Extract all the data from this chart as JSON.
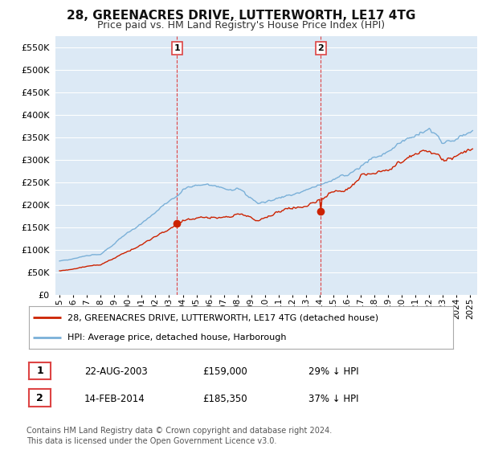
{
  "title": "28, GREENACRES DRIVE, LUTTERWORTH, LE17 4TG",
  "subtitle": "Price paid vs. HM Land Registry's House Price Index (HPI)",
  "title_fontsize": 11,
  "subtitle_fontsize": 9,
  "background_color": "#ffffff",
  "plot_bg_color": "#dce9f5",
  "grid_color": "#ffffff",
  "sale1_price": 159000,
  "sale1_hpi_pct": "29% ↓ HPI",
  "sale1_display": "22-AUG-2003",
  "sale1_year": 2003,
  "sale1_month": 8,
  "sale2_price": 185350,
  "sale2_hpi_pct": "37% ↓ HPI",
  "sale2_display": "14-FEB-2014",
  "sale2_year": 2014,
  "sale2_month": 2,
  "line1_color": "#cc2200",
  "line2_color": "#7ab0d8",
  "vline_color": "#dd4444",
  "marker_color": "#cc2200",
  "legend1_label": "28, GREENACRES DRIVE, LUTTERWORTH, LE17 4TG (detached house)",
  "legend2_label": "HPI: Average price, detached house, Harborough",
  "footer": "Contains HM Land Registry data © Crown copyright and database right 2024.\nThis data is licensed under the Open Government Licence v3.0.",
  "ylim": [
    0,
    575000
  ],
  "yticks": [
    0,
    50000,
    100000,
    150000,
    200000,
    250000,
    300000,
    350000,
    400000,
    450000,
    500000,
    550000
  ]
}
